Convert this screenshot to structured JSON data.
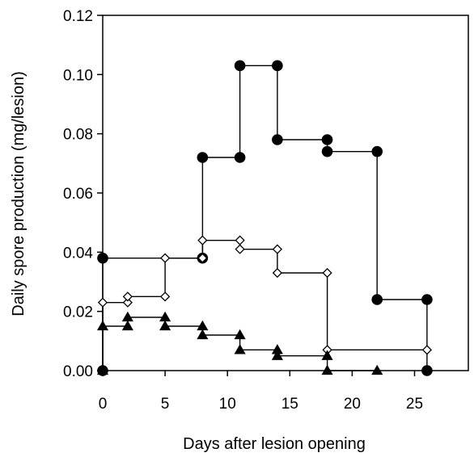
{
  "chart_data": {
    "type": "line",
    "xlabel": "Days after lesion opening",
    "ylabel": "Daily spore production (mg/lesion)",
    "xlim": [
      0,
      29
    ],
    "ylim": [
      0,
      0.12
    ],
    "xticks": [
      0,
      5,
      10,
      15,
      20,
      25
    ],
    "yticks": [
      0.0,
      0.02,
      0.04,
      0.06,
      0.08,
      0.1,
      0.12
    ],
    "ytick_labels": [
      "0.00",
      "0.02",
      "0.04",
      "0.06",
      "0.08",
      "0.10",
      "0.12"
    ],
    "xtick_labels": [
      "0",
      "5",
      "10",
      "15",
      "20",
      "25"
    ],
    "grid": false,
    "legend": "none",
    "series": [
      {
        "marker": "filled-circle",
        "color": "#000000",
        "points": [
          [
            0,
            0.0
          ],
          [
            0,
            0.038
          ],
          [
            8,
            0.038
          ],
          [
            8,
            0.072
          ],
          [
            11,
            0.072
          ],
          [
            11,
            0.103
          ],
          [
            14,
            0.103
          ],
          [
            14,
            0.078
          ],
          [
            18,
            0.078
          ],
          [
            18,
            0.074
          ],
          [
            22,
            0.074
          ],
          [
            22,
            0.024
          ],
          [
            26,
            0.024
          ],
          [
            26,
            0.0
          ]
        ]
      },
      {
        "marker": "open-diamond",
        "color": "#000000",
        "points": [
          [
            0,
            0.0
          ],
          [
            0,
            0.023
          ],
          [
            2,
            0.023
          ],
          [
            2,
            0.025
          ],
          [
            5,
            0.025
          ],
          [
            5,
            0.038
          ],
          [
            8,
            0.038
          ],
          [
            8,
            0.044
          ],
          [
            11,
            0.044
          ],
          [
            11,
            0.041
          ],
          [
            14,
            0.041
          ],
          [
            14,
            0.033
          ],
          [
            18,
            0.033
          ],
          [
            18,
            0.007
          ],
          [
            26,
            0.007
          ]
        ]
      },
      {
        "marker": "filled-triangle",
        "color": "#000000",
        "points": [
          [
            0,
            0.0
          ],
          [
            0,
            0.015
          ],
          [
            2,
            0.015
          ],
          [
            2,
            0.018
          ],
          [
            5,
            0.018
          ],
          [
            5,
            0.015
          ],
          [
            8,
            0.015
          ],
          [
            8,
            0.012
          ],
          [
            11,
            0.012
          ],
          [
            11,
            0.007
          ],
          [
            14,
            0.007
          ],
          [
            14,
            0.005
          ],
          [
            18,
            0.005
          ],
          [
            18,
            0.0
          ],
          [
            22,
            0.0
          ]
        ]
      }
    ]
  }
}
